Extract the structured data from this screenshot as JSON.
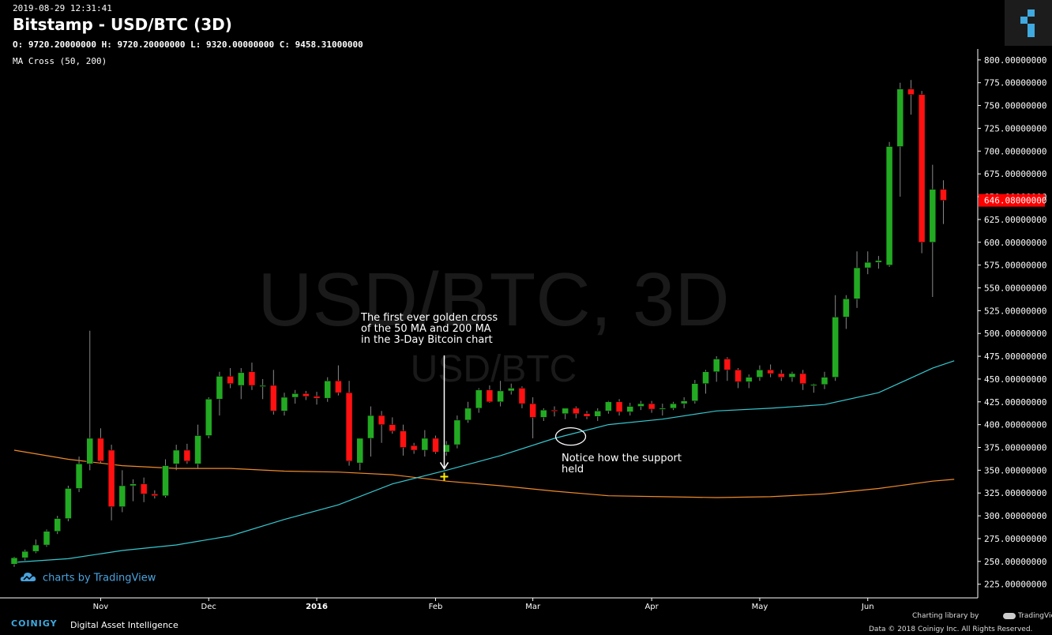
{
  "header": {
    "timestamp": "2019-08-29 12:31:41",
    "title": "Bitstamp - USD/BTC (3D)",
    "ohlc": "O: 9720.20000000 H: 9720.20000000 L: 9320.00000000 C: 9458.31000000",
    "indicator": "MA Cross (50, 200)"
  },
  "watermark": {
    "main": "USD/BTC, 3D",
    "sub": "USD/BTC"
  },
  "annotations": {
    "golden_cross": [
      "The first ever golden cross",
      "of the 50 MA and 200 MA",
      "in the 3-Day Bitcoin chart"
    ],
    "support": [
      "Notice how the support",
      "held"
    ]
  },
  "footer": {
    "tradingview": "charts by TradingView",
    "brand": "COINIGY",
    "tagline": "Digital Asset Intelligence",
    "charting_library": "Charting library by",
    "tv_small": "TradingView",
    "copyright": "Data © 2018  Coinigy Inc. All Rights Reserved."
  },
  "colors": {
    "up": "#22aa22",
    "down": "#ff1111",
    "ma50": "#35c8d0",
    "ma200": "#f08a2a",
    "price_badge": "#ff0000"
  },
  "chart_data": {
    "type": "candlestick",
    "ylim": [
      210,
      812
    ],
    "yticks": [
      225,
      250,
      275,
      300,
      325,
      350,
      375,
      400,
      425,
      450,
      475,
      500,
      525,
      550,
      575,
      600,
      625,
      650,
      675,
      700,
      725,
      750,
      775,
      800
    ],
    "ytick_decimals": 8,
    "last_price": "646.08000000",
    "xticks": [
      {
        "label": "Nov",
        "i": 8,
        "bold": false
      },
      {
        "label": "Dec",
        "i": 18,
        "bold": false
      },
      {
        "label": "2016",
        "i": 28,
        "bold": true
      },
      {
        "label": "Feb",
        "i": 39,
        "bold": false
      },
      {
        "label": "Mar",
        "i": 48,
        "bold": false
      },
      {
        "label": "Apr",
        "i": 59,
        "bold": false
      },
      {
        "label": "May",
        "i": 69,
        "bold": false
      },
      {
        "label": "Jun",
        "i": 79,
        "bold": false
      }
    ],
    "candles": [
      [
        247,
        255,
        244,
        254
      ],
      [
        254,
        263,
        251,
        261
      ],
      [
        261,
        274,
        259,
        268
      ],
      [
        268,
        285,
        266,
        283
      ],
      [
        283,
        300,
        280,
        297
      ],
      [
        297,
        333,
        294,
        330
      ],
      [
        330,
        365,
        326,
        357
      ],
      [
        357,
        503,
        350,
        385
      ],
      [
        385,
        396,
        358,
        360
      ],
      [
        372,
        378,
        295,
        310
      ],
      [
        310,
        350,
        304,
        333
      ],
      [
        333,
        340,
        316,
        335
      ],
      [
        335,
        342,
        315,
        324
      ],
      [
        324,
        328,
        319,
        322
      ],
      [
        322,
        362,
        320,
        355
      ],
      [
        357,
        378,
        350,
        372
      ],
      [
        372,
        379,
        357,
        360
      ],
      [
        357,
        400,
        352,
        388
      ],
      [
        388,
        430,
        385,
        428
      ],
      [
        428,
        458,
        410,
        453
      ],
      [
        453,
        462,
        440,
        445
      ],
      [
        443,
        462,
        428,
        457
      ],
      [
        458,
        468,
        438,
        443
      ],
      [
        443,
        450,
        428,
        443
      ],
      [
        443,
        460,
        411,
        415
      ],
      [
        415,
        435,
        410,
        430
      ],
      [
        430,
        438,
        423,
        434
      ],
      [
        434,
        437,
        427,
        431
      ],
      [
        431,
        436,
        422,
        429
      ],
      [
        429,
        452,
        425,
        448
      ],
      [
        448,
        465,
        432,
        435
      ],
      [
        435,
        448,
        355,
        360
      ],
      [
        358,
        385,
        350,
        385
      ],
      [
        385,
        420,
        365,
        410
      ],
      [
        410,
        415,
        380,
        400
      ],
      [
        400,
        408,
        390,
        393
      ],
      [
        393,
        400,
        366,
        375
      ],
      [
        377,
        380,
        368,
        372
      ],
      [
        372,
        394,
        365,
        385
      ],
      [
        385,
        388,
        368,
        370
      ],
      [
        370,
        382,
        366,
        378
      ],
      [
        378,
        410,
        374,
        405
      ],
      [
        405,
        425,
        402,
        418
      ],
      [
        418,
        440,
        413,
        438
      ],
      [
        438,
        443,
        424,
        425
      ],
      [
        425,
        448,
        420,
        437
      ],
      [
        437,
        445,
        433,
        440
      ],
      [
        440,
        442,
        418,
        423
      ],
      [
        423,
        430,
        385,
        408
      ],
      [
        408,
        418,
        404,
        416
      ],
      [
        416,
        420,
        409,
        415
      ],
      [
        412,
        418,
        406,
        418
      ],
      [
        418,
        420,
        407,
        412
      ],
      [
        412,
        415,
        406,
        409
      ],
      [
        409,
        418,
        404,
        415
      ],
      [
        415,
        426,
        412,
        425
      ],
      [
        425,
        428,
        410,
        414
      ],
      [
        414,
        424,
        410,
        420
      ],
      [
        420,
        426,
        416,
        423
      ],
      [
        423,
        426,
        413,
        417
      ],
      [
        417,
        423,
        410,
        418
      ],
      [
        418,
        425,
        416,
        423
      ],
      [
        423,
        430,
        418,
        426
      ],
      [
        426,
        449,
        423,
        445
      ],
      [
        445,
        460,
        434,
        458
      ],
      [
        458,
        475,
        447,
        472
      ],
      [
        472,
        474,
        448,
        460
      ],
      [
        460,
        462,
        440,
        447
      ],
      [
        447,
        455,
        440,
        452
      ],
      [
        452,
        465,
        448,
        460
      ],
      [
        460,
        466,
        452,
        456
      ],
      [
        456,
        460,
        448,
        452
      ],
      [
        452,
        458,
        447,
        456
      ],
      [
        456,
        460,
        438,
        445
      ],
      [
        443,
        445,
        435,
        444
      ],
      [
        444,
        458,
        439,
        452
      ],
      [
        452,
        542,
        448,
        518
      ],
      [
        518,
        542,
        505,
        538
      ],
      [
        538,
        590,
        528,
        572
      ],
      [
        572,
        590,
        565,
        578
      ],
      [
        578,
        585,
        571,
        580
      ],
      [
        575,
        710,
        573,
        705
      ],
      [
        705,
        775,
        650,
        768
      ],
      [
        768,
        778,
        740,
        762
      ],
      [
        762,
        766,
        588,
        600
      ],
      [
        600,
        685,
        540,
        658
      ],
      [
        658,
        668,
        620,
        646
      ]
    ],
    "ma50": [
      [
        0,
        249
      ],
      [
        5,
        253
      ],
      [
        10,
        262
      ],
      [
        15,
        268
      ],
      [
        20,
        278
      ],
      [
        25,
        296
      ],
      [
        30,
        312
      ],
      [
        35,
        335
      ],
      [
        40,
        350
      ],
      [
        45,
        366
      ],
      [
        50,
        385
      ],
      [
        55,
        400
      ],
      [
        60,
        406
      ],
      [
        65,
        415
      ],
      [
        70,
        418
      ],
      [
        75,
        422
      ],
      [
        80,
        435
      ],
      [
        85,
        462
      ],
      [
        87,
        470
      ]
    ],
    "ma200": [
      [
        0,
        372
      ],
      [
        5,
        362
      ],
      [
        10,
        355
      ],
      [
        15,
        352
      ],
      [
        20,
        352
      ],
      [
        25,
        349
      ],
      [
        30,
        348
      ],
      [
        35,
        345
      ],
      [
        40,
        338
      ],
      [
        45,
        333
      ],
      [
        50,
        327
      ],
      [
        55,
        322
      ],
      [
        60,
        321
      ],
      [
        65,
        320
      ],
      [
        70,
        321
      ],
      [
        75,
        324
      ],
      [
        80,
        330
      ],
      [
        85,
        338
      ],
      [
        87,
        340
      ]
    ],
    "cross_point": {
      "i": 39.8,
      "price": 343
    },
    "support_circle": {
      "i": 51.5,
      "price": 387
    }
  }
}
